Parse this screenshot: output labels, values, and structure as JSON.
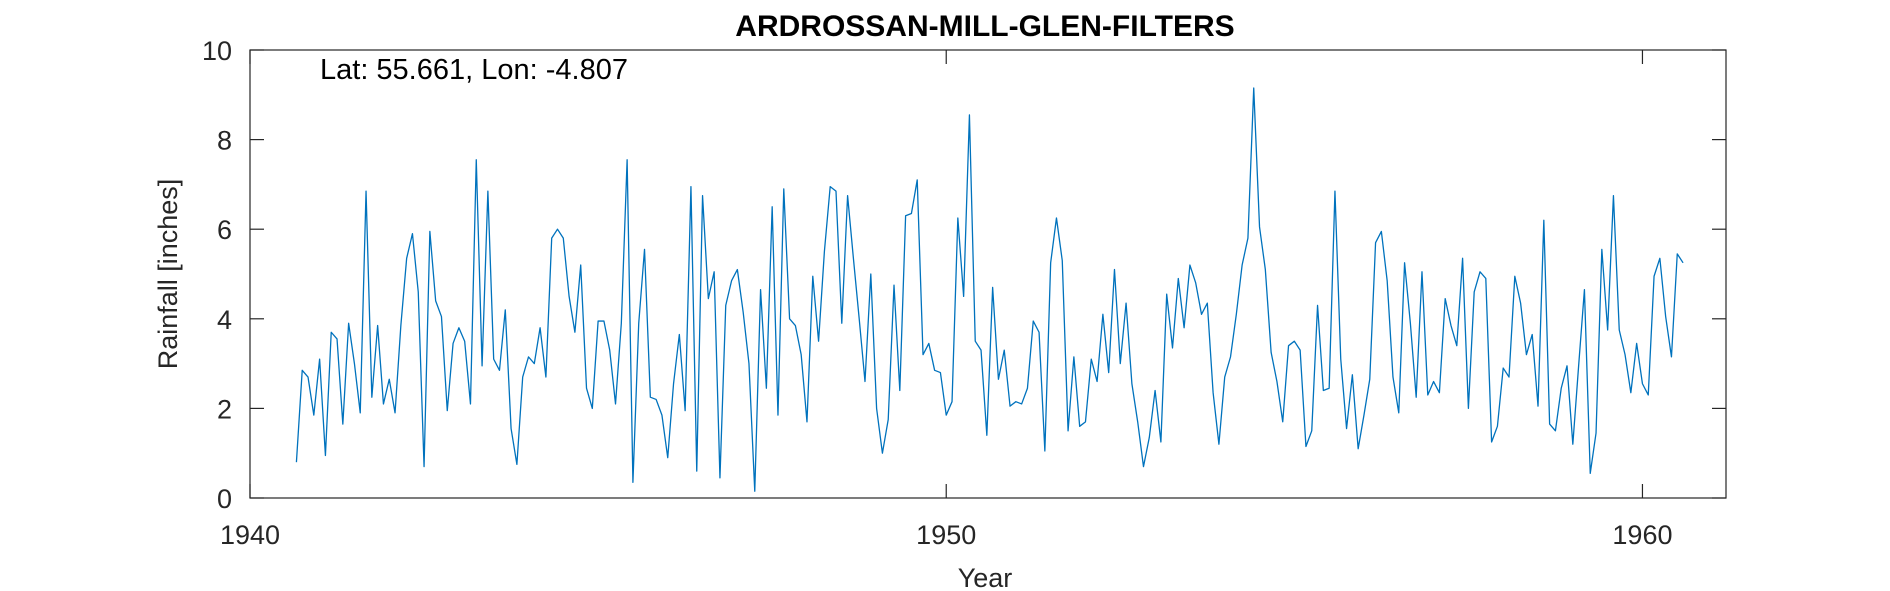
{
  "chart_data": {
    "type": "line",
    "title": "ARDROSSAN-MILL-GLEN-FILTERS",
    "xlabel": "Year",
    "ylabel": "Rainfall [inches]",
    "annotation": "Lat: 55.661, Lon: -4.807",
    "xlim": [
      1940,
      1961.2
    ],
    "ylim": [
      0,
      10
    ],
    "xticks": [
      1940,
      1950,
      1960
    ],
    "xtick_labels": [
      "1940",
      "1950",
      "1960"
    ],
    "yticks": [
      0,
      2,
      4,
      6,
      8,
      10
    ],
    "ytick_labels": [
      "0",
      "2",
      "4",
      "6",
      "8",
      "10"
    ],
    "grid": false,
    "line_color": "#0072BD",
    "series": [
      {
        "x_start": "1940-09",
        "frequency": "monthly",
        "values": [
          0.8,
          2.85,
          2.7,
          1.85,
          3.1,
          0.95,
          3.7,
          3.55,
          1.65,
          3.9,
          3.0,
          1.9,
          6.85,
          2.25,
          3.85,
          2.1,
          2.65,
          1.9,
          3.85,
          5.35,
          5.9,
          4.6,
          0.7,
          5.95,
          4.4,
          4.05,
          1.95,
          3.45,
          3.8,
          3.5,
          2.1,
          7.55,
          2.95,
          6.85,
          3.1,
          2.85,
          4.2,
          1.55,
          0.75,
          2.7,
          3.15,
          3.0,
          3.8,
          2.7,
          5.8,
          6.0,
          5.8,
          4.5,
          3.7,
          5.2,
          2.45,
          2.0,
          3.95,
          3.95,
          3.3,
          2.1,
          3.9,
          7.55,
          0.35,
          3.9,
          5.55,
          2.25,
          2.2,
          1.85,
          0.9,
          2.55,
          3.65,
          1.95,
          6.95,
          0.6,
          6.75,
          4.45,
          5.05,
          0.45,
          4.3,
          4.85,
          5.1,
          4.15,
          3.0,
          0.15,
          4.65,
          2.45,
          6.5,
          1.85,
          6.9,
          4.0,
          3.85,
          3.2,
          1.7,
          4.95,
          3.5,
          5.5,
          6.95,
          6.85,
          3.9,
          6.75,
          5.35,
          4.0,
          2.6,
          5.0,
          2.0,
          1.0,
          1.75,
          4.75,
          2.4,
          6.3,
          6.35,
          7.1,
          3.2,
          3.45,
          2.85,
          2.8,
          1.85,
          2.15,
          6.25,
          4.5,
          8.55,
          3.5,
          3.3,
          1.4,
          4.7,
          2.65,
          3.3,
          2.05,
          2.15,
          2.1,
          2.45,
          3.95,
          3.7,
          1.05,
          5.25,
          6.25,
          5.3,
          1.5,
          3.15,
          1.6,
          1.7,
          3.1,
          2.6,
          4.1,
          2.8,
          5.1,
          3.0,
          4.35,
          2.55,
          1.7,
          0.7,
          1.35,
          2.4,
          1.25,
          4.55,
          3.35,
          4.9,
          3.8,
          5.2,
          4.8,
          4.1,
          4.35,
          2.35,
          1.2,
          2.7,
          3.15,
          4.1,
          5.2,
          5.8,
          9.15,
          6.05,
          5.1,
          3.25,
          2.6,
          1.7,
          3.4,
          3.5,
          3.3,
          1.15,
          1.5,
          4.3,
          2.4,
          2.45,
          6.85,
          3.1,
          1.55,
          2.75,
          1.1,
          1.85,
          2.65,
          5.7,
          5.95,
          4.85,
          2.7,
          1.9,
          5.25,
          3.9,
          2.25,
          5.05,
          2.3,
          2.6,
          2.35,
          4.45,
          3.85,
          3.4,
          5.35,
          2.0,
          4.6,
          5.05,
          4.9,
          1.25,
          1.6,
          2.9,
          2.7,
          4.95,
          4.35,
          3.2,
          3.65,
          2.05,
          6.2,
          1.65,
          1.5,
          2.45,
          2.95,
          1.2,
          2.95,
          4.65,
          0.55,
          1.45,
          5.55,
          3.75,
          6.75,
          3.75,
          3.2,
          2.35,
          3.45,
          2.55,
          2.3,
          4.95,
          5.35,
          4.05,
          3.15,
          5.45,
          5.25
        ]
      }
    ]
  }
}
